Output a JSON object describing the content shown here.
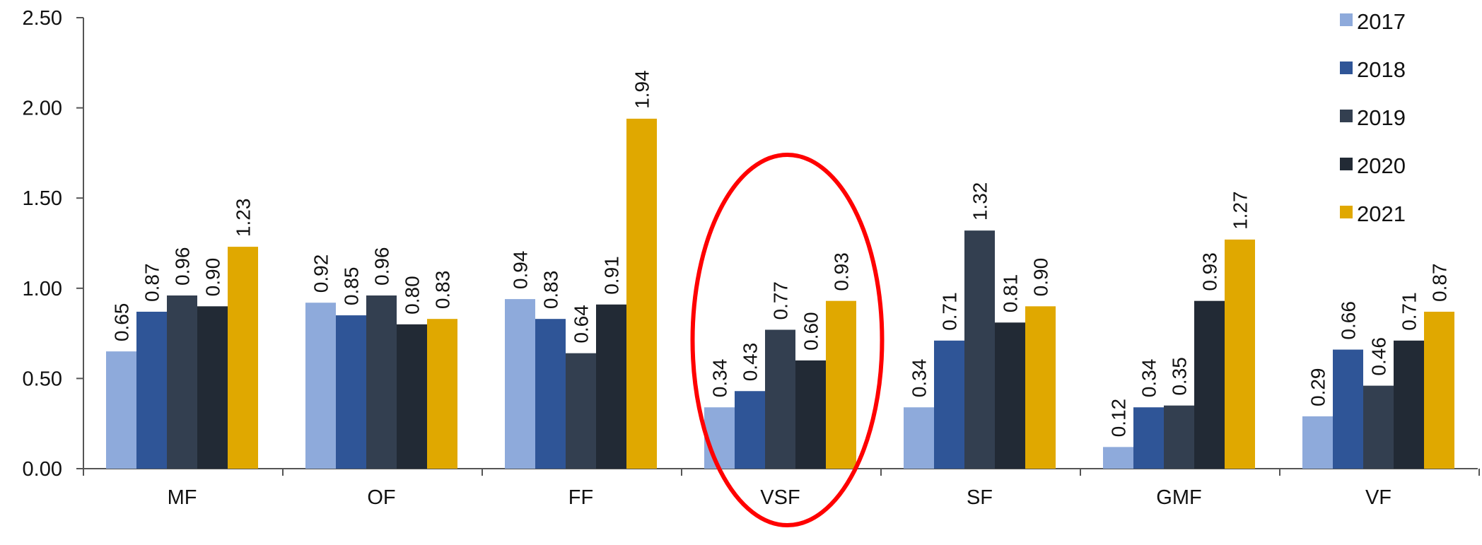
{
  "chart_data": {
    "type": "bar",
    "categories": [
      "MF",
      "OF",
      "FF",
      "VSF",
      "SF",
      "GMF",
      "VF"
    ],
    "series": [
      {
        "name": "2017",
        "color": "#8eaadb",
        "values": [
          0.65,
          0.92,
          0.94,
          0.34,
          0.34,
          0.12,
          0.29
        ]
      },
      {
        "name": "2018",
        "color": "#2f5597",
        "values": [
          0.87,
          0.85,
          0.83,
          0.43,
          0.71,
          0.34,
          0.66
        ]
      },
      {
        "name": "2019",
        "color": "#333f50",
        "values": [
          0.96,
          0.96,
          0.64,
          0.77,
          1.32,
          0.35,
          0.46
        ]
      },
      {
        "name": "2020",
        "color": "#222a35",
        "values": [
          0.9,
          0.8,
          0.91,
          0.6,
          0.81,
          0.93,
          0.71
        ]
      },
      {
        "name": "2021",
        "color": "#e0a800",
        "values": [
          1.23,
          0.83,
          1.94,
          0.93,
          0.9,
          1.27,
          0.87
        ]
      }
    ],
    "value_labels": [
      [
        "0.65",
        "0.92",
        "0.94",
        "0.34",
        "0.34",
        "0.12",
        "0.29"
      ],
      [
        "0.87",
        "0.85",
        "0.83",
        "0.43",
        "0.71",
        "0.34",
        "0.66"
      ],
      [
        "0.96",
        "0.96",
        "0.64",
        "0.77",
        "1.32",
        "0.35",
        "0.46"
      ],
      [
        "0.90",
        "0.80",
        "0.91",
        "0.60",
        "0.81",
        "0.93",
        "0.71"
      ],
      [
        "1.23",
        "0.83",
        "1.94",
        "0.93",
        "0.90",
        "1.27",
        "0.87"
      ]
    ],
    "yticks": [
      "0.00",
      "0.50",
      "1.00",
      "1.50",
      "2.00",
      "2.50"
    ],
    "ylim": [
      0,
      2.5
    ],
    "grid": false,
    "legend_position": "top-right",
    "highlight": {
      "category": "VSF",
      "shape": "ellipse",
      "color": "#ff0000"
    }
  }
}
